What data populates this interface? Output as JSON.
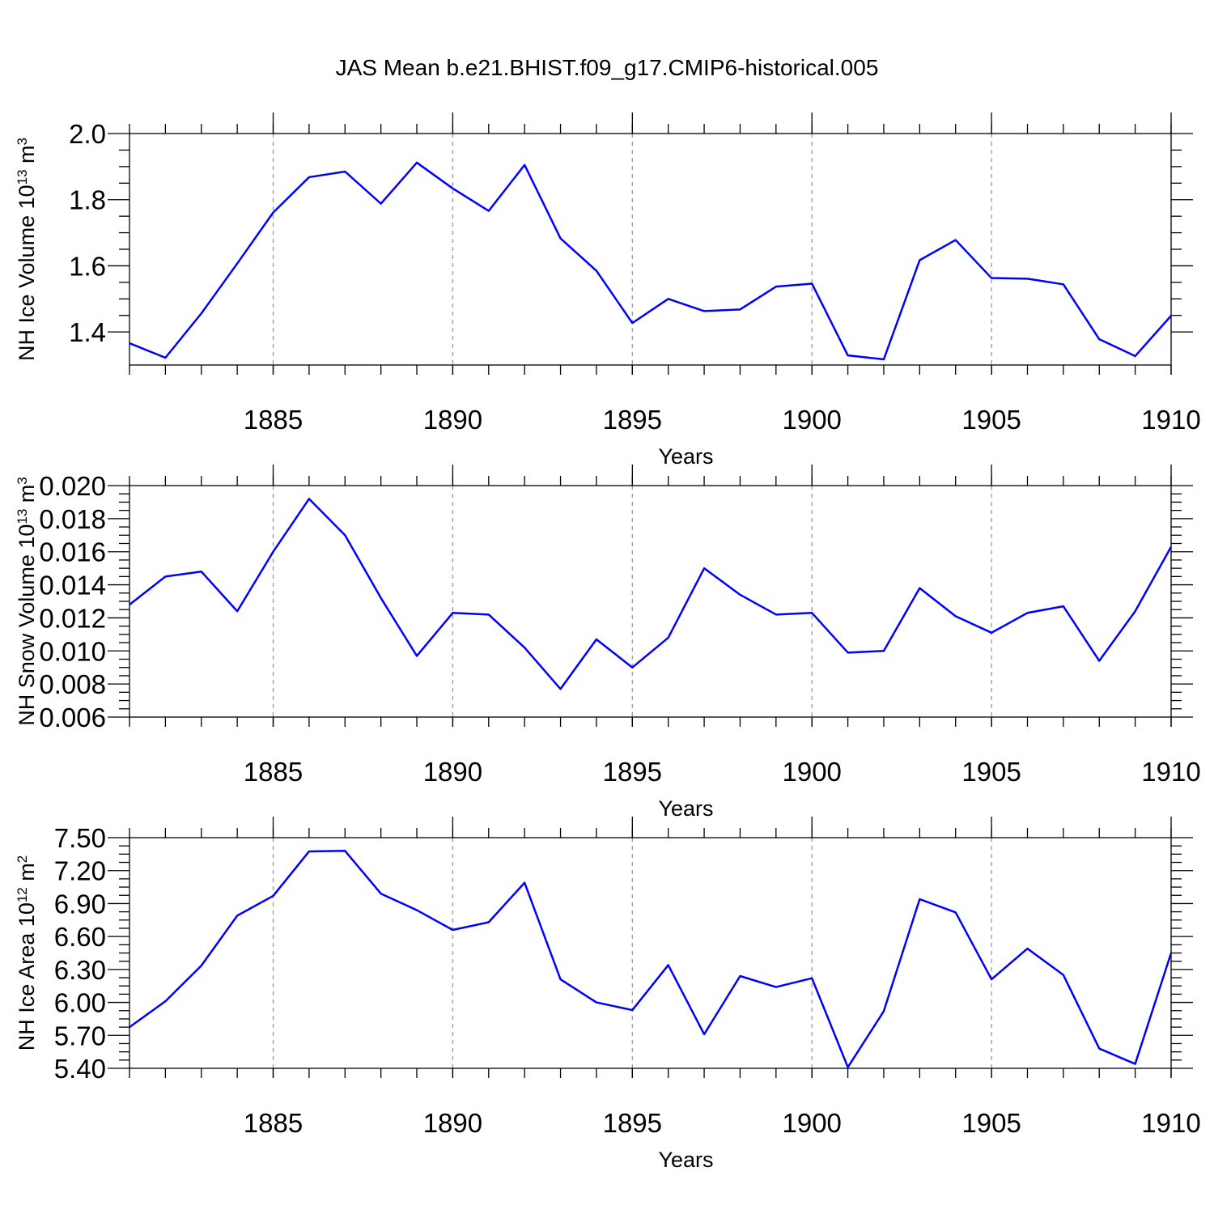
{
  "chart_data": [
    {
      "type": "line",
      "title": "JAS Mean b.e21.BHIST.f09_g17.CMIP6-historical.005",
      "ylabel": [
        "NH Ice Volume 10",
        "13",
        " m",
        "3"
      ],
      "xlabel": "Years",
      "x": [
        1881,
        1882,
        1883,
        1884,
        1885,
        1886,
        1887,
        1888,
        1889,
        1890,
        1891,
        1892,
        1893,
        1894,
        1895,
        1896,
        1897,
        1898,
        1899,
        1900,
        1901,
        1902,
        1903,
        1904,
        1905,
        1906,
        1907,
        1908,
        1909,
        1910
      ],
      "values": [
        1.366,
        1.322,
        1.456,
        1.607,
        1.761,
        1.868,
        1.885,
        1.788,
        1.912,
        1.834,
        1.766,
        1.905,
        1.683,
        1.585,
        1.427,
        1.5,
        1.463,
        1.468,
        1.537,
        1.546,
        1.329,
        1.317,
        1.617,
        1.678,
        1.563,
        1.561,
        1.544,
        1.378,
        1.327,
        1.449
      ],
      "color": "#0000ff",
      "xlim": [
        1881,
        1910
      ],
      "xticks": [
        1885,
        1890,
        1895,
        1900,
        1905,
        1910
      ],
      "ylim": [
        1.3,
        2.0
      ],
      "yticks": [
        1.4,
        1.6,
        1.8,
        {
          "value": 2,
          "label": "2.0"
        }
      ],
      "grid": true
    },
    {
      "type": "line",
      "ylabel": [
        "NH Snow Volume 10",
        "13",
        " m",
        "3"
      ],
      "xlabel": "Years",
      "x": [
        1881,
        1882,
        1883,
        1884,
        1885,
        1886,
        1887,
        1888,
        1889,
        1890,
        1891,
        1892,
        1893,
        1894,
        1895,
        1896,
        1897,
        1898,
        1899,
        1900,
        1901,
        1902,
        1903,
        1904,
        1905,
        1906,
        1907,
        1908,
        1909,
        1910
      ],
      "values": [
        0.0128,
        0.0145,
        0.0148,
        0.0124,
        0.016,
        0.0192,
        0.017,
        0.0132,
        0.0097,
        0.0123,
        0.0122,
        0.0102,
        0.0077,
        0.0107,
        0.009,
        0.0108,
        0.015,
        0.0134,
        0.0122,
        0.0123,
        0.0099,
        0.01,
        0.0138,
        0.0121,
        0.0111,
        0.0123,
        0.0127,
        0.0094,
        0.0124,
        0.0163
      ],
      "color": "#0000ff",
      "xlim": [
        1881,
        1910
      ],
      "xticks": [
        1885,
        1890,
        1895,
        1900,
        1905,
        1910
      ],
      "ylim": [
        0.006,
        0.02
      ],
      "yticks": [
        0.006,
        0.008,
        {
          "value": 0.01,
          "label": "0.010"
        },
        0.012,
        0.014,
        0.016,
        0.018,
        {
          "value": 0.02,
          "label": "0.020"
        }
      ],
      "grid": true
    },
    {
      "type": "line",
      "ylabel": [
        "NH Ice Area 10",
        "12",
        " m",
        "2"
      ],
      "xlabel": "Years",
      "x": [
        1881,
        1882,
        1883,
        1884,
        1885,
        1886,
        1887,
        1888,
        1889,
        1890,
        1891,
        1892,
        1893,
        1894,
        1895,
        1896,
        1897,
        1898,
        1899,
        1900,
        1901,
        1902,
        1903,
        1904,
        1905,
        1906,
        1907,
        1908,
        1909,
        1910
      ],
      "values": [
        5.775,
        6.011,
        6.335,
        6.79,
        6.97,
        7.375,
        7.38,
        6.99,
        6.84,
        6.66,
        6.73,
        7.09,
        6.21,
        6.0,
        5.93,
        6.34,
        5.71,
        6.24,
        6.14,
        6.22,
        5.41,
        5.92,
        6.94,
        6.82,
        6.21,
        6.49,
        6.25,
        5.58,
        5.44,
        6.45
      ],
      "color": "#0000ff",
      "xlim": [
        1881,
        1910
      ],
      "xticks": [
        1885,
        1890,
        1895,
        1900,
        1905,
        1910
      ],
      "ylim": [
        5.4,
        7.5
      ],
      "yticks": [
        {
          "value": 5.4,
          "label": "5.40"
        },
        {
          "value": 5.7,
          "label": "5.70"
        },
        {
          "value": 6,
          "label": "6.00"
        },
        {
          "value": 6.3,
          "label": "6.30"
        },
        {
          "value": 6.6,
          "label": "6.60"
        },
        {
          "value": 6.9,
          "label": "6.90"
        },
        {
          "value": 7.2,
          "label": "7.20"
        },
        {
          "value": 7.5,
          "label": "7.50"
        }
      ],
      "grid": true
    }
  ]
}
